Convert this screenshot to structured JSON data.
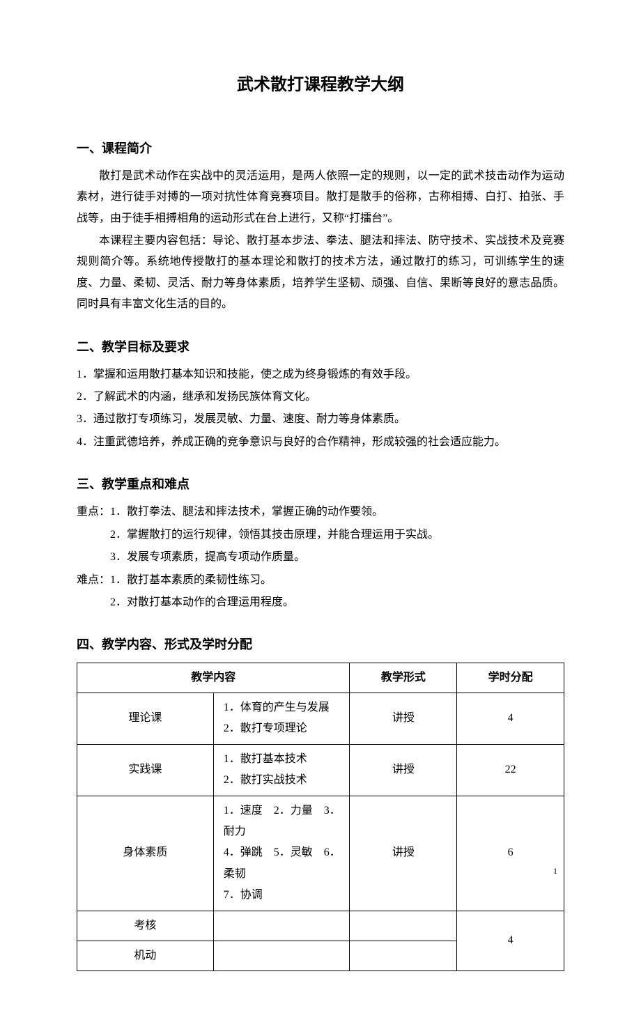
{
  "title": "武术散打课程教学大纲",
  "sections": {
    "intro": {
      "heading": "一、课程简介",
      "paragraphs": [
        "散打是武术动作在实战中的灵活运用，是两人依照一定的规则，以一定的武术技击动作为运动素材，进行徒手对搏的一项对抗性体育竞赛项目。散打是散手的俗称，古称相搏、白打、拍张、手战等，由于徒手相搏相角的运动形式在台上进行，又称“打擂台”。",
        "本课程主要内容包括：导论、散打基本步法、拳法、腿法和摔法、防守技术、实战技术及竞赛规则简介等。系统地传授散打的基本理论和散打的技术方法，通过散打的练习，可训练学生的速度、力量、柔韧、灵活、耐力等身体素质，培养学生坚韧、顽强、自信、果断等良好的意志品质。同时具有丰富文化生活的目的。"
      ]
    },
    "objectives": {
      "heading": "二、教学目标及要求",
      "items": [
        "1．掌握和运用散打基本知识和技能，使之成为终身锻炼的有效手段。",
        "2．了解武术的内涵，继承和发扬民族体育文化。",
        "3．通过散打专项练习，发展灵敏、力量、速度、耐力等身体素质。",
        "4．注重武德培养，养成正确的竞争意识与良好的合作精神，形成较强的社会适应能力。"
      ]
    },
    "keypoints": {
      "heading": "三、教学重点和难点",
      "focus_label": "重点：",
      "focus_items": [
        "1．散打拳法、腿法和摔法技术，掌握正确的动作要领。",
        "2．掌握散打的运行规律，领悟其技击原理，并能合理运用于实战。",
        "3．发展专项素质，提高专项动作质量。"
      ],
      "difficulty_label": "难点：",
      "difficulty_items": [
        "1．散打基本素质的柔韧性练习。",
        "2．对散打基本动作的合理运用程度。"
      ]
    },
    "schedule": {
      "heading": "四、教学内容、形式及学时分配",
      "table": {
        "headers": {
          "content": "教学内容",
          "form": "教学形式",
          "hours": "学时分配"
        },
        "rows": [
          {
            "category": "理论课",
            "content_lines": [
              "1．体育的产生与发展",
              "2．散打专项理论"
            ],
            "form": "讲授",
            "hours": "4"
          },
          {
            "category": "实践课",
            "content_lines": [
              "1．散打基本技术",
              "2．散打实战技术"
            ],
            "form": "讲授",
            "hours": "22"
          },
          {
            "category": "身体素质",
            "content_lines": [
              "1．速度　2．力量　3．耐力",
              "4．弹跳　5．灵敏　6．柔韧",
              "7．协调"
            ],
            "form": "讲授",
            "hours": "6"
          },
          {
            "category": "考核",
            "content_lines": [
              ""
            ],
            "form": "",
            "hours": "4",
            "rowspan_hours": 2
          },
          {
            "category": "机动",
            "content_lines": [
              ""
            ],
            "form": ""
          }
        ]
      }
    }
  },
  "page_number": "1",
  "colors": {
    "text": "#000000",
    "background": "#ffffff",
    "border": "#000000"
  }
}
